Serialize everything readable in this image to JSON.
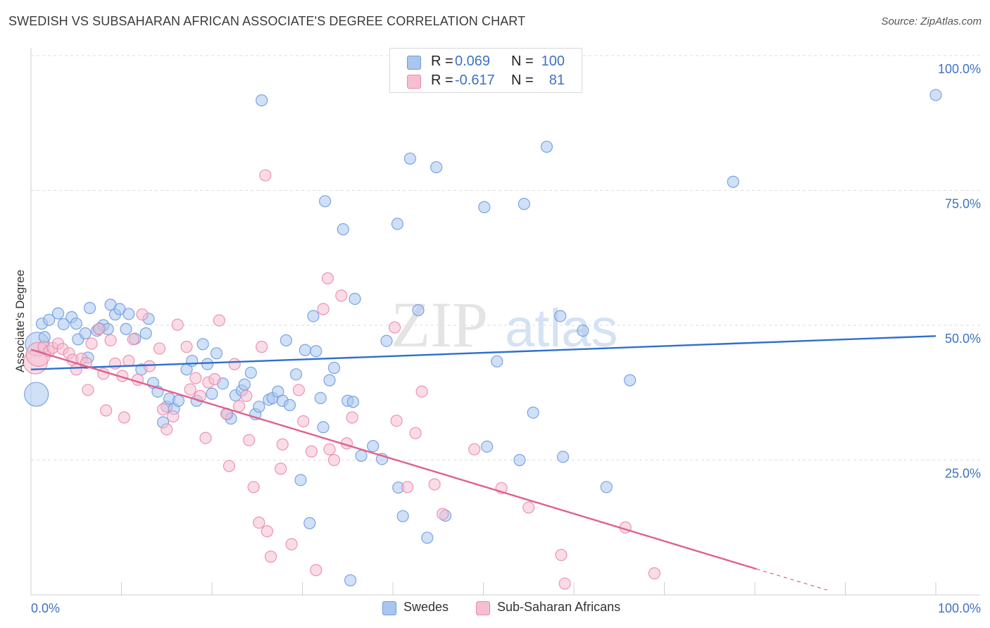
{
  "header": {
    "title": "SWEDISH VS SUBSAHARAN AFRICAN ASSOCIATE'S DEGREE CORRELATION CHART",
    "source": "Source: ZipAtlas.com"
  },
  "watermark": {
    "zip": "ZIP",
    "atlas": "atlas"
  },
  "legend": {
    "rows": [
      {
        "r_label": "R =",
        "r_value": "0.069",
        "n_label": "N =",
        "n_value": "100",
        "color": "#a9c6ef",
        "border": "#6e9be0"
      },
      {
        "r_label": "R =",
        "r_value": "-0.617",
        "n_label": "N =",
        "n_value": "81",
        "color": "#f6bfd1",
        "border": "#e98aab"
      }
    ]
  },
  "bottom_legend": [
    {
      "label": "Swedes",
      "color": "#a9c6ef",
      "border": "#6e9be0"
    },
    {
      "label": "Sub-Saharan Africans",
      "color": "#f6bfd1",
      "border": "#e98aab"
    }
  ],
  "chart_data": {
    "type": "scatter",
    "title": "SWEDISH VS SUBSAHARAN AFRICAN ASSOCIATE'S DEGREE CORRELATION CHART",
    "ylabel": "Associate's Degree",
    "xlabel": "",
    "xlim": [
      0,
      100
    ],
    "ylim": [
      0,
      100
    ],
    "x_tick_labels": {
      "min": "0.0%",
      "max": "100.0%"
    },
    "y_ticks": [
      {
        "value": 100,
        "label": "100.0%"
      },
      {
        "value": 75,
        "label": "75.0%"
      },
      {
        "value": 50,
        "label": "50.0%"
      },
      {
        "value": 25,
        "label": "25.0%"
      }
    ],
    "grid": "horizontal dashed",
    "legend_position": "top-center",
    "colors": {
      "swedes_fill": "#a9c6ef",
      "swedes_stroke": "#6e9be0",
      "swedes_line": "#2e6fcf",
      "africans_fill": "#f6bfd1",
      "africans_stroke": "#e98aab",
      "africans_line": "#e0608d",
      "tick_label": "#3d72c4"
    },
    "series": [
      {
        "name": "Swedes",
        "trend": {
          "x": [
            0,
            100
          ],
          "y": [
            41.8,
            48.0
          ]
        },
        "points": [
          [
            0.6,
            37.2,
            "L"
          ],
          [
            0.7,
            46.5,
            "L"
          ],
          [
            1.2,
            50.3
          ],
          [
            1.5,
            47.8
          ],
          [
            2.0,
            51.0
          ],
          [
            3.0,
            52.2
          ],
          [
            3.6,
            50.2
          ],
          [
            4.5,
            51.5
          ],
          [
            5.0,
            50.3
          ],
          [
            5.2,
            47.4
          ],
          [
            6.0,
            48.5
          ],
          [
            6.3,
            44.0
          ],
          [
            6.5,
            53.2
          ],
          [
            7.3,
            49.0
          ],
          [
            7.6,
            49.4
          ],
          [
            8.0,
            50.0
          ],
          [
            8.5,
            49.3
          ],
          [
            8.8,
            53.8
          ],
          [
            9.3,
            52.0
          ],
          [
            9.8,
            53.0
          ],
          [
            10.5,
            49.3
          ],
          [
            10.8,
            52.1
          ],
          [
            11.5,
            47.5
          ],
          [
            12.2,
            41.8
          ],
          [
            12.7,
            48.5
          ],
          [
            13.0,
            51.2
          ],
          [
            13.5,
            39.3
          ],
          [
            14.0,
            37.7
          ],
          [
            14.6,
            32.0
          ],
          [
            15.0,
            34.9
          ],
          [
            15.3,
            36.4
          ],
          [
            15.8,
            34.5
          ],
          [
            16.3,
            36.0
          ],
          [
            17.2,
            41.8
          ],
          [
            17.8,
            43.4
          ],
          [
            18.3,
            36.0
          ],
          [
            19.0,
            46.5
          ],
          [
            19.5,
            42.8
          ],
          [
            20.0,
            37.3
          ],
          [
            20.5,
            44.8
          ],
          [
            21.2,
            39.2
          ],
          [
            21.7,
            33.5
          ],
          [
            22.1,
            32.7
          ],
          [
            22.6,
            37.0
          ],
          [
            23.3,
            37.9
          ],
          [
            23.6,
            39.0
          ],
          [
            24.3,
            41.2
          ],
          [
            24.8,
            33.5
          ],
          [
            25.2,
            34.9
          ],
          [
            25.5,
            91.7
          ],
          [
            26.3,
            36.2
          ],
          [
            26.7,
            36.5
          ],
          [
            27.3,
            37.7
          ],
          [
            27.8,
            36.0
          ],
          [
            28.2,
            47.2
          ],
          [
            28.6,
            35.2
          ],
          [
            29.3,
            40.9
          ],
          [
            29.8,
            21.3
          ],
          [
            30.3,
            45.4
          ],
          [
            30.8,
            13.3
          ],
          [
            31.2,
            51.7
          ],
          [
            31.5,
            45.2
          ],
          [
            32.0,
            36.5
          ],
          [
            32.3,
            31.1
          ],
          [
            32.5,
            73.0
          ],
          [
            33.0,
            39.8
          ],
          [
            33.5,
            42.1
          ],
          [
            34.5,
            67.8
          ],
          [
            35.0,
            36.0
          ],
          [
            35.3,
            2.7
          ],
          [
            35.6,
            35.8
          ],
          [
            35.8,
            54.9
          ],
          [
            36.5,
            25.8
          ],
          [
            37.8,
            27.6
          ],
          [
            38.8,
            25.2
          ],
          [
            39.3,
            47.1
          ],
          [
            40.5,
            68.8
          ],
          [
            40.6,
            19.9
          ],
          [
            41.1,
            14.6
          ],
          [
            41.9,
            80.9
          ],
          [
            42.8,
            52.8
          ],
          [
            43.8,
            10.6
          ],
          [
            44.8,
            79.3
          ],
          [
            45.8,
            14.7
          ],
          [
            50.1,
            71.9
          ],
          [
            50.4,
            27.5
          ],
          [
            51.5,
            43.3
          ],
          [
            54.0,
            25.0
          ],
          [
            54.5,
            72.5
          ],
          [
            55.5,
            33.8
          ],
          [
            57.0,
            83.1
          ],
          [
            58.5,
            51.7
          ],
          [
            58.8,
            25.6
          ],
          [
            61.0,
            49.0
          ],
          [
            63.6,
            20.0
          ],
          [
            66.2,
            39.8
          ],
          [
            77.6,
            76.6
          ],
          [
            100.0,
            92.7
          ]
        ]
      },
      {
        "name": "Sub-Saharan Africans",
        "trend": {
          "x": [
            0,
            80.2
          ],
          "y": [
            45.5,
            4.8
          ]
        },
        "trend_dashed": {
          "x": [
            80.2,
            88.0
          ],
          "y": [
            4.8,
            0.9
          ]
        },
        "points": [
          [
            0.5,
            43.2,
            "L"
          ],
          [
            0.8,
            44.6,
            "L"
          ],
          [
            1.4,
            46.0
          ],
          [
            2.0,
            45.2
          ],
          [
            2.4,
            45.8
          ],
          [
            3.0,
            46.6
          ],
          [
            3.5,
            45.6
          ],
          [
            4.2,
            44.8
          ],
          [
            4.6,
            43.6
          ],
          [
            5.0,
            41.8
          ],
          [
            5.6,
            43.8
          ],
          [
            6.1,
            43.0
          ],
          [
            6.3,
            38.0
          ],
          [
            6.7,
            46.6
          ],
          [
            7.5,
            49.3
          ],
          [
            8.0,
            41.0
          ],
          [
            8.3,
            34.2
          ],
          [
            8.8,
            47.2
          ],
          [
            9.3,
            42.9
          ],
          [
            10.1,
            40.6
          ],
          [
            10.3,
            32.9
          ],
          [
            10.8,
            43.4
          ],
          [
            11.3,
            47.4
          ],
          [
            11.8,
            39.9
          ],
          [
            12.3,
            52.0
          ],
          [
            13.1,
            42.4
          ],
          [
            14.2,
            45.7
          ],
          [
            14.6,
            34.4
          ],
          [
            15.0,
            30.7
          ],
          [
            15.7,
            33.1
          ],
          [
            16.2,
            50.1
          ],
          [
            17.2,
            46.0
          ],
          [
            17.6,
            38.1
          ],
          [
            18.2,
            40.2
          ],
          [
            18.7,
            36.9
          ],
          [
            19.3,
            29.1
          ],
          [
            19.6,
            39.4
          ],
          [
            20.3,
            40.0
          ],
          [
            20.8,
            50.9
          ],
          [
            21.6,
            33.6
          ],
          [
            21.9,
            23.9
          ],
          [
            22.5,
            42.8
          ],
          [
            23.0,
            35.0
          ],
          [
            23.8,
            36.9
          ],
          [
            24.1,
            28.7
          ],
          [
            24.6,
            20.0
          ],
          [
            25.2,
            13.4
          ],
          [
            25.5,
            46.0
          ],
          [
            25.9,
            77.8
          ],
          [
            26.1,
            11.8
          ],
          [
            26.5,
            7.1
          ],
          [
            27.6,
            23.4
          ],
          [
            27.8,
            27.9
          ],
          [
            28.8,
            9.4
          ],
          [
            29.6,
            38.0
          ],
          [
            30.1,
            32.2
          ],
          [
            31.0,
            26.6
          ],
          [
            31.5,
            4.6
          ],
          [
            32.3,
            53.0
          ],
          [
            32.8,
            58.7
          ],
          [
            33.0,
            27.0
          ],
          [
            33.5,
            25.0
          ],
          [
            34.3,
            55.5
          ],
          [
            34.9,
            28.1
          ],
          [
            35.5,
            32.9
          ],
          [
            40.2,
            49.6
          ],
          [
            40.4,
            32.3
          ],
          [
            41.6,
            20.0
          ],
          [
            42.5,
            30.0
          ],
          [
            43.2,
            37.7
          ],
          [
            44.6,
            20.5
          ],
          [
            45.5,
            15.0
          ],
          [
            49.0,
            27.0
          ],
          [
            52.0,
            19.8
          ],
          [
            55.0,
            16.2
          ],
          [
            58.6,
            7.4
          ],
          [
            59.0,
            2.1
          ],
          [
            65.7,
            12.5
          ],
          [
            68.9,
            4.0
          ]
        ]
      }
    ]
  }
}
